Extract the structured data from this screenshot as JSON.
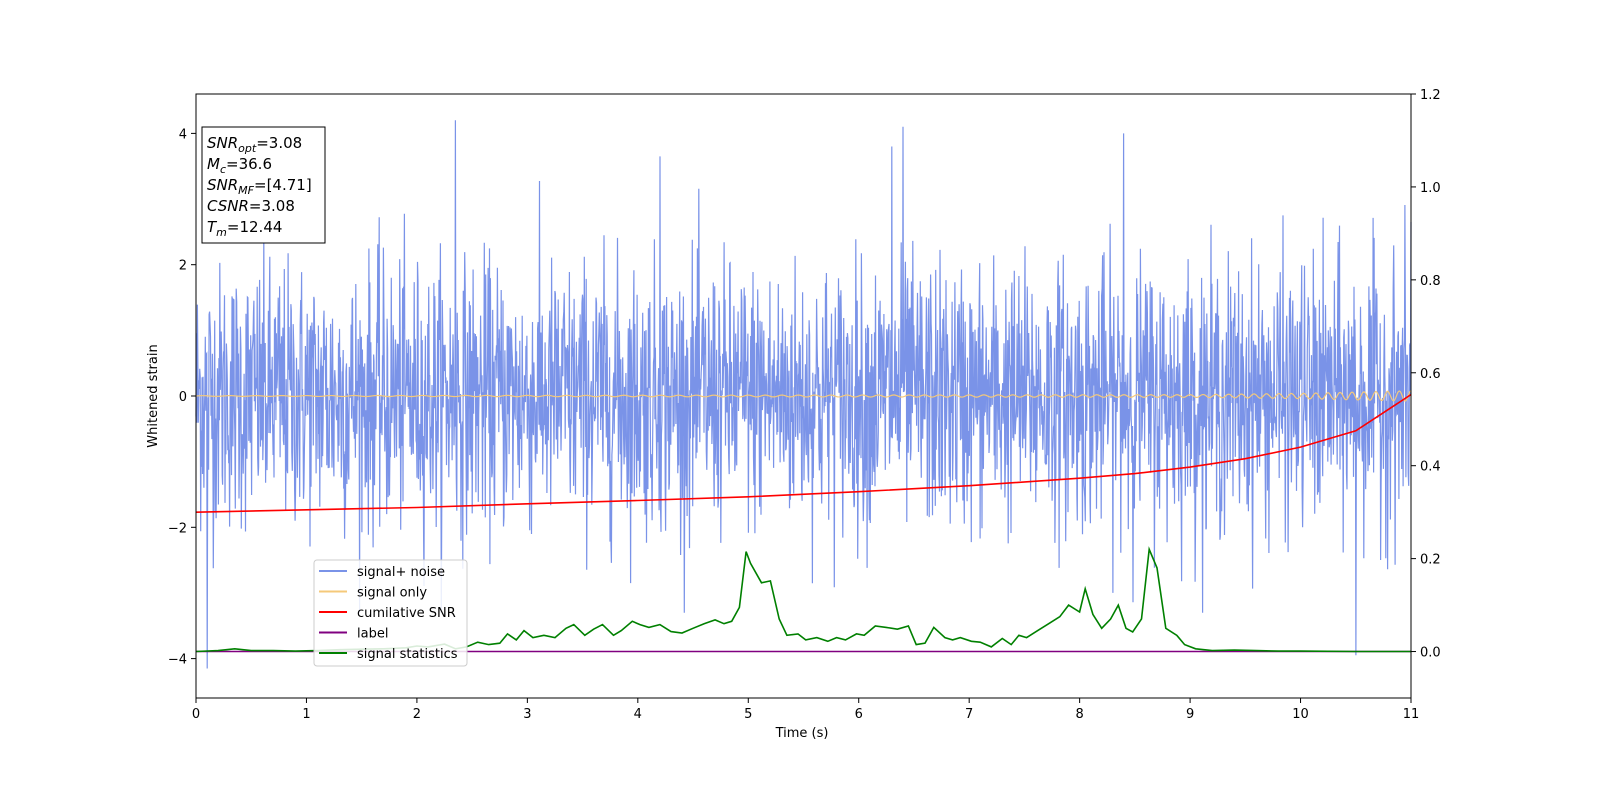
{
  "chart_data": {
    "type": "line",
    "title": "",
    "xlabel": "Time (s)",
    "ylabel": "Whitened strain",
    "xlim": [
      0,
      11
    ],
    "ylim": [
      -4.6,
      4.6
    ],
    "ylim_right": [
      -0.1,
      1.2
    ],
    "x_ticks": [
      "0",
      "1",
      "2",
      "3",
      "4",
      "5",
      "6",
      "7",
      "8",
      "9",
      "10",
      "11"
    ],
    "y_ticks": [
      "4",
      "2",
      "0",
      "−2",
      "−4"
    ],
    "y_ticks_right": [
      "1.2",
      "1.0",
      "0.8",
      "0.6",
      "0.4",
      "0.2",
      "0.0"
    ],
    "grid": false,
    "legend_position": "lower-left",
    "colors": {
      "signal_noise": "#7a93e8",
      "signal_only": "#f5c97a",
      "cumulative_snr": "#ff0000",
      "label": "#800080",
      "signal_statistics": "#008000"
    },
    "annotation": [
      {
        "sym": "SNR",
        "sub": "opt",
        "val": "=3.08"
      },
      {
        "sym": "M",
        "sub": "c",
        "val": "=36.6"
      },
      {
        "sym": "SNR",
        "sub": "MF",
        "val": "=[4.71]"
      },
      {
        "sym": "CSNR",
        "sub": "",
        "val": "=3.08"
      },
      {
        "sym": "T",
        "sub": "m",
        "val": "=12.44"
      }
    ],
    "series": [
      {
        "name": "signal+ noise",
        "axis": "left",
        "style": "noise",
        "amplitude_std": 1.0,
        "peaks": [
          [
            0.1,
            -4.15
          ],
          [
            2.35,
            4.2
          ],
          [
            4.2,
            3.65
          ],
          [
            6.3,
            3.8
          ],
          [
            6.4,
            4.1
          ],
          [
            8.4,
            4.0
          ],
          [
            10.5,
            -3.95
          ],
          [
            11.0,
            2.65
          ]
        ]
      },
      {
        "name": "signal only",
        "axis": "left",
        "style": "chirp",
        "x": [
          0,
          9,
          10,
          10.5,
          11
        ],
        "amplitude": [
          0.005,
          0.02,
          0.04,
          0.06,
          0.08
        ]
      },
      {
        "name": "cumilative SNR",
        "axis": "right",
        "x": [
          0,
          1,
          2,
          3,
          4,
          5,
          6,
          7,
          8,
          8.5,
          9,
          9.5,
          10,
          10.5,
          11
        ],
        "y": [
          0.3,
          0.305,
          0.31,
          0.318,
          0.325,
          0.333,
          0.344,
          0.357,
          0.373,
          0.383,
          0.397,
          0.415,
          0.44,
          0.475,
          0.553
        ]
      },
      {
        "name": "label",
        "axis": "right",
        "x": [
          0,
          11
        ],
        "y": [
          0.0,
          0.0
        ]
      },
      {
        "name": "signal statistics",
        "axis": "right",
        "x": [
          0,
          0.2,
          0.35,
          0.5,
          0.7,
          0.9,
          1.1,
          1.3,
          1.5,
          1.7,
          1.9,
          2.0,
          2.1,
          2.25,
          2.35,
          2.45,
          2.55,
          2.65,
          2.75,
          2.82,
          2.9,
          2.97,
          3.05,
          3.15,
          3.25,
          3.35,
          3.42,
          3.52,
          3.6,
          3.68,
          3.78,
          3.85,
          3.95,
          4.02,
          4.1,
          4.2,
          4.3,
          4.4,
          4.5,
          4.6,
          4.7,
          4.78,
          4.85,
          4.92,
          4.98,
          5.02,
          5.12,
          5.2,
          5.28,
          5.35,
          5.45,
          5.52,
          5.62,
          5.72,
          5.8,
          5.88,
          5.98,
          6.05,
          6.15,
          6.25,
          6.35,
          6.45,
          6.52,
          6.6,
          6.68,
          6.78,
          6.85,
          6.92,
          7.02,
          7.1,
          7.2,
          7.3,
          7.38,
          7.45,
          7.52,
          7.62,
          7.72,
          7.82,
          7.9,
          8.0,
          8.05,
          8.12,
          8.2,
          8.28,
          8.35,
          8.42,
          8.48,
          8.56,
          8.63,
          8.7,
          8.78,
          8.88,
          8.95,
          9.05,
          9.2,
          9.4,
          9.6,
          9.8,
          10.0,
          10.5,
          11.0
        ],
        "y": [
          0.0,
          0.002,
          0.006,
          0.002,
          0.002,
          0.001,
          0.002,
          0.004,
          0.005,
          0.006,
          0.008,
          0.012,
          0.01,
          0.016,
          0.006,
          0.01,
          0.02,
          0.015,
          0.018,
          0.038,
          0.025,
          0.045,
          0.03,
          0.035,
          0.03,
          0.05,
          0.058,
          0.035,
          0.048,
          0.058,
          0.035,
          0.045,
          0.065,
          0.058,
          0.052,
          0.058,
          0.043,
          0.04,
          0.05,
          0.06,
          0.068,
          0.06,
          0.065,
          0.095,
          0.215,
          0.19,
          0.148,
          0.152,
          0.07,
          0.035,
          0.038,
          0.025,
          0.03,
          0.022,
          0.03,
          0.025,
          0.038,
          0.035,
          0.055,
          0.052,
          0.048,
          0.055,
          0.015,
          0.018,
          0.052,
          0.03,
          0.025,
          0.03,
          0.022,
          0.02,
          0.01,
          0.028,
          0.015,
          0.035,
          0.03,
          0.045,
          0.06,
          0.075,
          0.1,
          0.085,
          0.135,
          0.08,
          0.05,
          0.07,
          0.1,
          0.05,
          0.042,
          0.07,
          0.22,
          0.18,
          0.05,
          0.035,
          0.015,
          0.006,
          0.002,
          0.003,
          0.002,
          0.001,
          0.001,
          0.0,
          0.0
        ]
      }
    ]
  }
}
